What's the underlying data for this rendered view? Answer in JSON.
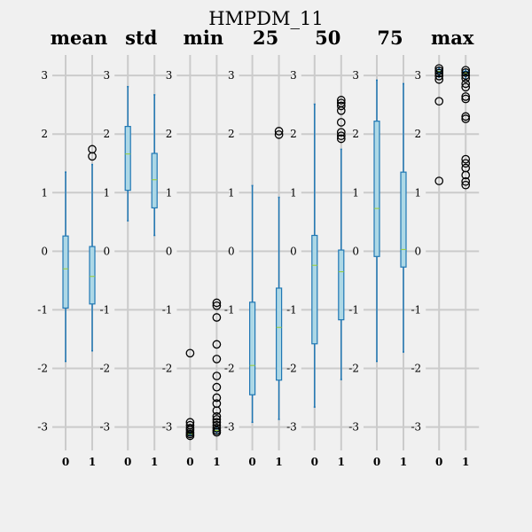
{
  "chart_data": {
    "type": "box",
    "title": "HMPDM_11",
    "ylim": [
      -3.4,
      3.35
    ],
    "yticks": [
      -3,
      -2,
      -1,
      0,
      1,
      2,
      3
    ],
    "grid": true,
    "colors": {
      "background": "#f0f0f0",
      "grid": "#cbcbcb",
      "box_fill": "#add8e6",
      "box_edge": "#1f77b4",
      "median": "#9acd32",
      "flier": "#000000"
    },
    "panels": [
      {
        "title": "mean",
        "categories": [
          "0",
          "1"
        ],
        "boxes": [
          {
            "whislo": -1.88,
            "q1": -0.97,
            "med": -0.3,
            "q3": 0.26,
            "whishi": 1.35,
            "fliers": []
          },
          {
            "whislo": -1.7,
            "q1": -0.9,
            "med": -0.43,
            "q3": 0.08,
            "whishi": 1.48,
            "fliers": [
              1.62,
              1.74
            ]
          }
        ]
      },
      {
        "title": "std",
        "categories": [
          "0",
          "1"
        ],
        "boxes": [
          {
            "whislo": 0.52,
            "q1": 1.04,
            "med": 1.66,
            "q3": 2.13,
            "whishi": 2.81,
            "fliers": []
          },
          {
            "whislo": 0.27,
            "q1": 0.74,
            "med": 1.22,
            "q3": 1.67,
            "whishi": 2.67,
            "fliers": []
          }
        ]
      },
      {
        "title": "min",
        "categories": [
          "0",
          "1"
        ],
        "boxes": [
          {
            "whislo": -3.15,
            "q1": -3.13,
            "med": -3.12,
            "q3": -3.1,
            "whishi": -3.08,
            "fliers": [
              -1.74,
              -2.92,
              -2.97,
              -3.02,
              -3.05,
              -3.09,
              -3.12,
              -3.15
            ]
          },
          {
            "whislo": -3.12,
            "q1": -3.08,
            "med": -3.06,
            "q3": -3.03,
            "whishi": -3.0,
            "fliers": [
              -0.88,
              -0.93,
              -1.13,
              -1.59,
              -1.84,
              -2.13,
              -2.32,
              -2.5,
              -2.6,
              -2.72,
              -2.82,
              -2.87,
              -2.92,
              -2.97,
              -3.02,
              -3.06,
              -3.09
            ]
          }
        ]
      },
      {
        "title": "25",
        "categories": [
          "0",
          "1"
        ],
        "boxes": [
          {
            "whislo": -2.92,
            "q1": -2.45,
            "med": -1.95,
            "q3": -0.87,
            "whishi": 1.12,
            "fliers": []
          },
          {
            "whislo": -2.87,
            "q1": -2.2,
            "med": -1.3,
            "q3": -0.63,
            "whishi": 0.92,
            "fliers": [
              1.99,
              2.05
            ]
          }
        ]
      },
      {
        "title": "50",
        "categories": [
          "0",
          "1"
        ],
        "boxes": [
          {
            "whislo": -2.66,
            "q1": -1.58,
            "med": -0.24,
            "q3": 0.27,
            "whishi": 2.51,
            "fliers": []
          },
          {
            "whislo": -2.19,
            "q1": -1.17,
            "med": -0.35,
            "q3": 0.02,
            "whishi": 1.74,
            "fliers": [
              1.92,
              1.97,
              2.03,
              2.2,
              2.4,
              2.48,
              2.53,
              2.58
            ]
          }
        ]
      },
      {
        "title": "75",
        "categories": [
          "0",
          "1"
        ],
        "boxes": [
          {
            "whislo": -1.88,
            "q1": -0.09,
            "med": 0.73,
            "q3": 2.22,
            "whishi": 2.92,
            "fliers": []
          },
          {
            "whislo": -1.72,
            "q1": -0.27,
            "med": 0.03,
            "q3": 1.35,
            "whishi": 2.86,
            "fliers": []
          }
        ]
      },
      {
        "title": "max",
        "categories": [
          "0",
          "1"
        ],
        "boxes": [
          {
            "whislo": 2.97,
            "q1": 3.03,
            "med": 3.07,
            "q3": 3.1,
            "whishi": 3.13,
            "fliers": [
              1.2,
              2.56,
              2.93,
              2.99,
              3.04,
              3.08,
              3.12
            ]
          },
          {
            "whislo": 2.93,
            "q1": 3.0,
            "med": 3.04,
            "q3": 3.07,
            "whishi": 3.1,
            "fliers": [
              1.13,
              1.19,
              1.3,
              1.42,
              1.5,
              1.57,
              2.26,
              2.3,
              2.6,
              2.64,
              2.8,
              2.86,
              2.95,
              3.0,
              3.05,
              3.09
            ]
          }
        ]
      }
    ]
  }
}
